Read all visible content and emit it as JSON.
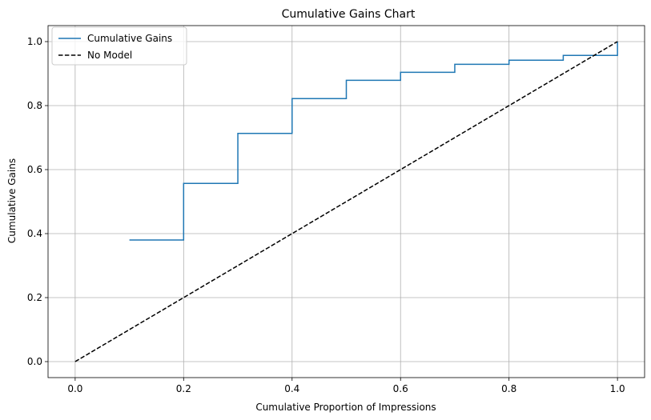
{
  "chart_data": {
    "type": "line",
    "title": "Cumulative Gains Chart",
    "xlabel": "Cumulative Proportion of Impressions",
    "ylabel": "Cumulative Gains",
    "xlim": [
      -0.05,
      1.05
    ],
    "ylim": [
      -0.05,
      1.05
    ],
    "xticks": [
      "0.0",
      "0.2",
      "0.4",
      "0.6",
      "0.8",
      "1.0"
    ],
    "yticks": [
      "0.0",
      "0.2",
      "0.4",
      "0.6",
      "0.8",
      "1.0"
    ],
    "grid": true,
    "legend_position": "upper-left",
    "series": [
      {
        "name": "Cumulative Gains",
        "style": "steps-post",
        "color": "#1f77b4",
        "x": [
          0.1,
          0.2,
          0.3,
          0.4,
          0.5,
          0.6,
          0.7,
          0.8,
          0.9,
          1.0
        ],
        "y": [
          0.38,
          0.557,
          0.713,
          0.822,
          0.879,
          0.904,
          0.929,
          0.942,
          0.957,
          1.0
        ]
      },
      {
        "name": "No Model",
        "style": "dashed",
        "color": "#000000",
        "x": [
          0.0,
          1.0
        ],
        "y": [
          0.0,
          1.0
        ]
      }
    ]
  }
}
